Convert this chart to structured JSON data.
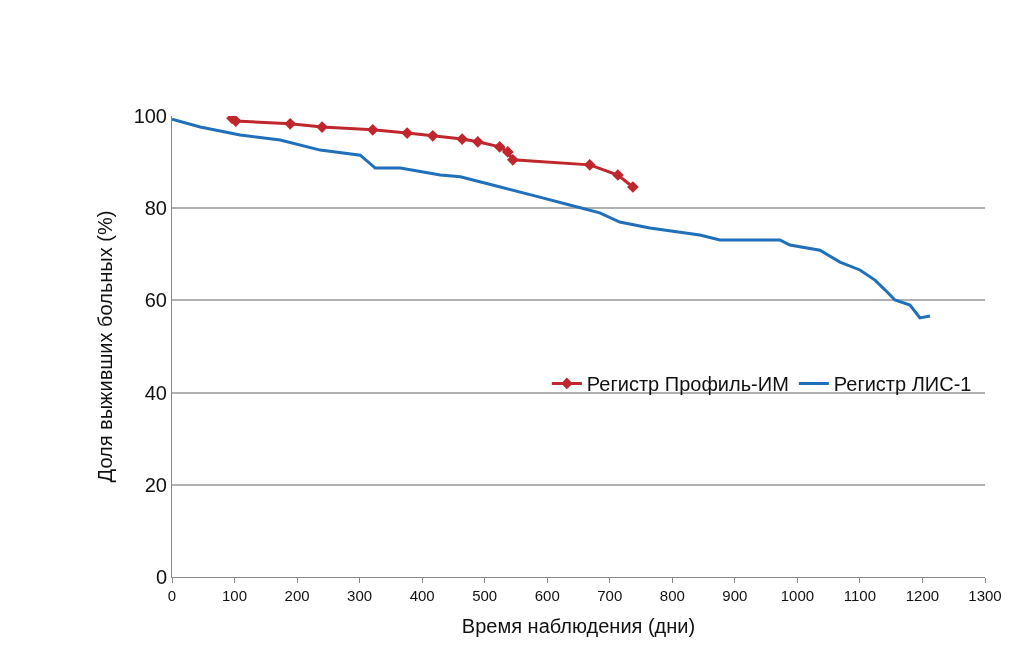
{
  "chart_data": {
    "type": "line",
    "xlabel": "Время наблюдения (дни)",
    "ylabel": "Доля выживших больных (%)",
    "xlim": [
      0,
      1300
    ],
    "xticks": [
      0,
      100,
      200,
      300,
      400,
      500,
      600,
      700,
      800,
      900,
      1000,
      1100,
      1200,
      1300
    ],
    "ylim": [
      0,
      100
    ],
    "yticks": [
      0,
      20,
      40,
      60,
      80,
      100
    ],
    "grid": "y",
    "legend": "right",
    "line_style": "solid",
    "series": [
      {
        "name": "Регистр Профиль-ИМ",
        "color": "#c0272d",
        "marker": "diamond",
        "x": [
          96,
          102,
          189,
          240,
          321,
          376,
          417,
          464,
          489,
          524,
          537,
          545,
          668,
          713,
          737
        ],
        "values": [
          99.5,
          98.9,
          98.3,
          97.6,
          97,
          96.3,
          95.7,
          95,
          94.4,
          93.3,
          92.2,
          90.5,
          89.4,
          87.2,
          84.6
        ]
      },
      {
        "name": "Регистр ЛИС-1",
        "color": "#1f6fba",
        "marker": "none",
        "x": [
          0,
          45,
          109,
          173,
          237,
          301,
          325,
          365,
          429,
          461,
          525,
          588,
          636,
          684,
          716,
          764,
          844,
          876,
          972,
          988,
          1036,
          1068,
          1100,
          1124,
          1140,
          1156,
          1180,
          1196,
          1212
        ],
        "values": [
          99.3,
          97.6,
          95.9,
          94.8,
          92.6,
          91.5,
          88.7,
          88.7,
          87.2,
          86.8,
          84.6,
          82.4,
          80.7,
          79,
          77,
          75.7,
          74.2,
          73.1,
          73.1,
          72,
          70.9,
          68.3,
          66.6,
          64.4,
          62.3,
          60.1,
          59,
          56.2,
          56.6
        ]
      }
    ]
  }
}
